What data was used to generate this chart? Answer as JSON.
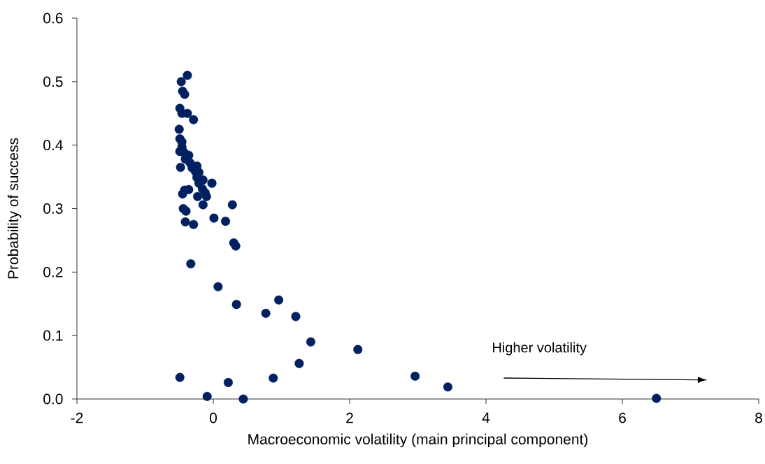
{
  "chart_data": {
    "type": "scatter",
    "xlabel": "Macroeconomic volatility (main principal component)",
    "ylabel": "Probability of success",
    "annotations": [
      "Higher volatility"
    ],
    "xlim": [
      -2,
      8
    ],
    "xticks": [
      -2,
      0,
      2,
      4,
      6,
      8
    ],
    "ylim": [
      0,
      0.6
    ],
    "yticks": [
      {
        "value": 0,
        "label": "0.0"
      },
      0.1,
      0.2,
      0.3,
      0.4,
      0.5,
      0.6
    ],
    "grid": false,
    "marker": "circle",
    "series": [
      {
        "color": "#002060",
        "x": [
          -0.38,
          -0.47,
          -0.45,
          -0.42,
          -0.49,
          -0.46,
          -0.38,
          -0.29,
          -0.5,
          -0.49,
          -0.46,
          -0.46,
          -0.49,
          -0.44,
          -0.41,
          -0.36,
          -0.41,
          -0.34,
          -0.48,
          -0.31,
          -0.24,
          -0.26,
          -0.21,
          -0.24,
          -0.15,
          -0.21,
          -0.02,
          -0.16,
          -0.42,
          -0.36,
          -0.23,
          -0.12,
          -0.1,
          -0.45,
          -0.15,
          0.28,
          -0.44,
          -0.4,
          0.01,
          0.18,
          -0.41,
          -0.29,
          0.3,
          0.33,
          -0.33,
          0.07,
          0.34,
          0.96,
          0.77,
          1.21,
          1.43,
          2.12,
          1.26,
          -0.49,
          0.22,
          0.88,
          2.96,
          3.44,
          -0.09,
          0.44,
          6.5
        ],
        "values": [
          0.51,
          0.5,
          0.485,
          0.48,
          0.458,
          0.45,
          0.45,
          0.44,
          0.425,
          0.41,
          0.405,
          0.397,
          0.39,
          0.39,
          0.386,
          0.384,
          0.378,
          0.372,
          0.365,
          0.364,
          0.367,
          0.358,
          0.357,
          0.349,
          0.345,
          0.34,
          0.34,
          0.331,
          0.329,
          0.33,
          0.319,
          0.325,
          0.319,
          0.323,
          0.306,
          0.306,
          0.3,
          0.296,
          0.285,
          0.28,
          0.279,
          0.275,
          0.246,
          0.241,
          0.213,
          0.177,
          0.149,
          0.156,
          0.135,
          0.13,
          0.09,
          0.078,
          0.056,
          0.034,
          0.026,
          0.033,
          0.036,
          0.019,
          0.004,
          0.0,
          0.001
        ]
      }
    ]
  }
}
